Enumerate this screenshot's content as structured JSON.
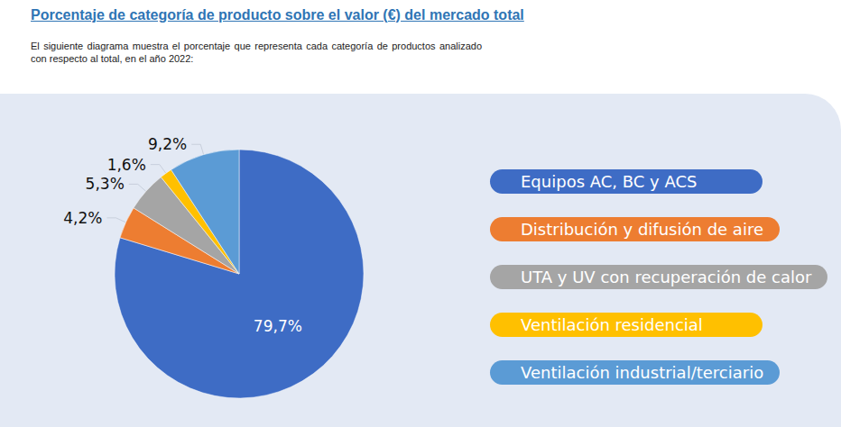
{
  "chart_data": {
    "type": "pie",
    "title": "Porcentaje de categoría de producto sobre el valor (€) del mercado total",
    "subtitle": "El siguiente diagrama muestra el porcentaje que representa cada categoría de productos analizado con respecto al total, en el año 2022:",
    "categories": [
      "Equipos AC, BC y ACS",
      "Distribución y difusión de aire",
      "UTA y UV con recuperación de calor",
      "Ventilación residencial",
      "Ventilación industrial/terciario"
    ],
    "values": [
      79.7,
      4.2,
      5.3,
      1.6,
      9.2
    ],
    "value_labels": [
      "79,7%",
      "4,2%",
      "5,3%",
      "1,6%",
      "9,2%"
    ],
    "colors": [
      "#3e6cc5",
      "#ed7d31",
      "#a5a5a5",
      "#ffc000",
      "#5b9bd5"
    ],
    "data_labels": true,
    "legend": "right"
  }
}
